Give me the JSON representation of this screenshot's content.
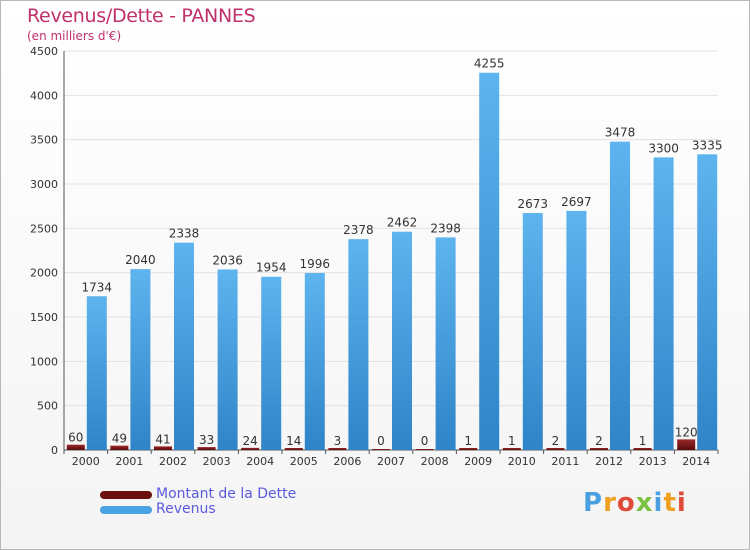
{
  "title": "Revenus/Dette - PANNES",
  "subtitle": "(en milliers d'€)",
  "legend": {
    "debt_label": "Montant de la Dette",
    "revenue_label": "Revenus"
  },
  "logo": "Proxiti",
  "colors": {
    "debt": "#6b0e0e",
    "revenue": "#4aa3e3",
    "title": "#c0306a",
    "legend_text": "#5a5adc"
  },
  "chart_data": {
    "type": "bar",
    "title": "Revenus/Dette - PANNES",
    "ylabel": "(en milliers d'€)",
    "xlabel": "",
    "ylim": [
      0,
      4500
    ],
    "yticks": [
      0,
      500,
      1000,
      1500,
      2000,
      2500,
      3000,
      3500,
      4000,
      4500
    ],
    "grid": true,
    "legend_position": "bottom-left",
    "categories": [
      "2000",
      "2001",
      "2002",
      "2003",
      "2004",
      "2005",
      "2006",
      "2007",
      "2008",
      "2009",
      "2010",
      "2011",
      "2012",
      "2013",
      "2014"
    ],
    "series": [
      {
        "name": "Montant de la Dette",
        "values": [
          60,
          49,
          41,
          33,
          24,
          14,
          3,
          0,
          0,
          1,
          1,
          2,
          2,
          1,
          120
        ]
      },
      {
        "name": "Revenus",
        "values": [
          1734,
          2040,
          2338,
          2036,
          1954,
          1996,
          2378,
          2462,
          2398,
          4255,
          2673,
          2697,
          3478,
          3300,
          3335
        ]
      }
    ]
  }
}
